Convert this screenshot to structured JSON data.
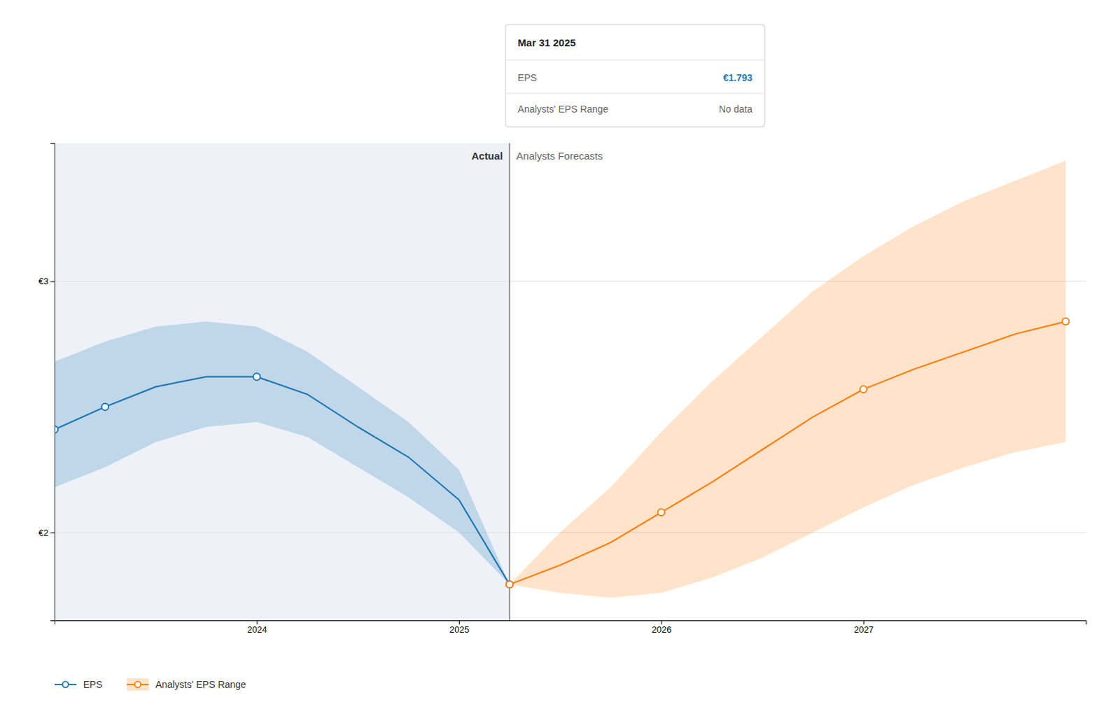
{
  "chart_data": {
    "type": "line",
    "marker": "circle",
    "grid": true,
    "legend": "lower left",
    "x": [
      2023.0,
      2023.25,
      2023.5,
      2023.75,
      2024.0,
      2024.25,
      2024.5,
      2024.75,
      2025.0,
      2025.25,
      2025.5,
      2025.75,
      2026.0,
      2026.25,
      2026.5,
      2026.75,
      2027.0,
      2027.25,
      2027.5,
      2027.75,
      2028.0
    ],
    "series": [
      {
        "name": "EPS",
        "values": [
          2.41,
          2.5,
          2.58,
          2.62,
          2.62,
          2.55,
          2.42,
          2.3,
          2.13,
          1.793,
          null,
          null,
          null,
          null,
          null,
          null,
          null,
          null,
          null,
          null,
          null
        ],
        "upper": [
          2.68,
          2.76,
          2.82,
          2.84,
          2.82,
          2.72,
          2.58,
          2.44,
          2.25,
          1.793,
          null,
          null,
          null,
          null,
          null,
          null,
          null,
          null,
          null,
          null,
          null
        ],
        "lower": [
          2.18,
          2.26,
          2.36,
          2.42,
          2.44,
          2.38,
          2.26,
          2.14,
          2.0,
          1.793,
          null,
          null,
          null,
          null,
          null,
          null,
          null,
          null,
          null,
          null,
          null
        ],
        "marker_x": [
          2023.0,
          2023.25,
          2024.0,
          2025.25
        ]
      },
      {
        "name": "Analysts' EPS Range",
        "values": [
          null,
          null,
          null,
          null,
          null,
          null,
          null,
          null,
          null,
          1.793,
          1.87,
          1.96,
          2.08,
          2.2,
          2.33,
          2.46,
          2.57,
          2.65,
          2.72,
          2.79,
          2.84
        ],
        "upper": [
          null,
          null,
          null,
          null,
          null,
          null,
          null,
          null,
          null,
          1.793,
          2.0,
          2.18,
          2.4,
          2.6,
          2.78,
          2.96,
          3.1,
          3.22,
          3.32,
          3.4,
          3.48
        ],
        "lower": [
          null,
          null,
          null,
          null,
          null,
          null,
          null,
          null,
          null,
          1.793,
          1.76,
          1.74,
          1.76,
          1.82,
          1.9,
          2.0,
          2.1,
          2.19,
          2.26,
          2.32,
          2.36
        ],
        "marker_x": [
          2025.25,
          2026.0,
          2027.0,
          2028.0
        ]
      }
    ],
    "divider": 2025.25,
    "annotations": [
      "Actual",
      "Analysts Forecasts"
    ],
    "tooltip": {
      "title": "Mar 31 2025",
      "rows": [
        {
          "label": "EPS",
          "value": "€1.793"
        },
        {
          "label": "Analysts' EPS Range",
          "value": "No data"
        }
      ]
    },
    "xlim": [
      2023.0,
      2028.1
    ],
    "xticks": [
      2024,
      2025,
      2026,
      2027
    ],
    "ylim": [
      1.65,
      3.55
    ],
    "yticks": [
      {
        "value": 2.0,
        "label": "€2"
      },
      {
        "value": 3.0,
        "label": "€3"
      }
    ]
  }
}
